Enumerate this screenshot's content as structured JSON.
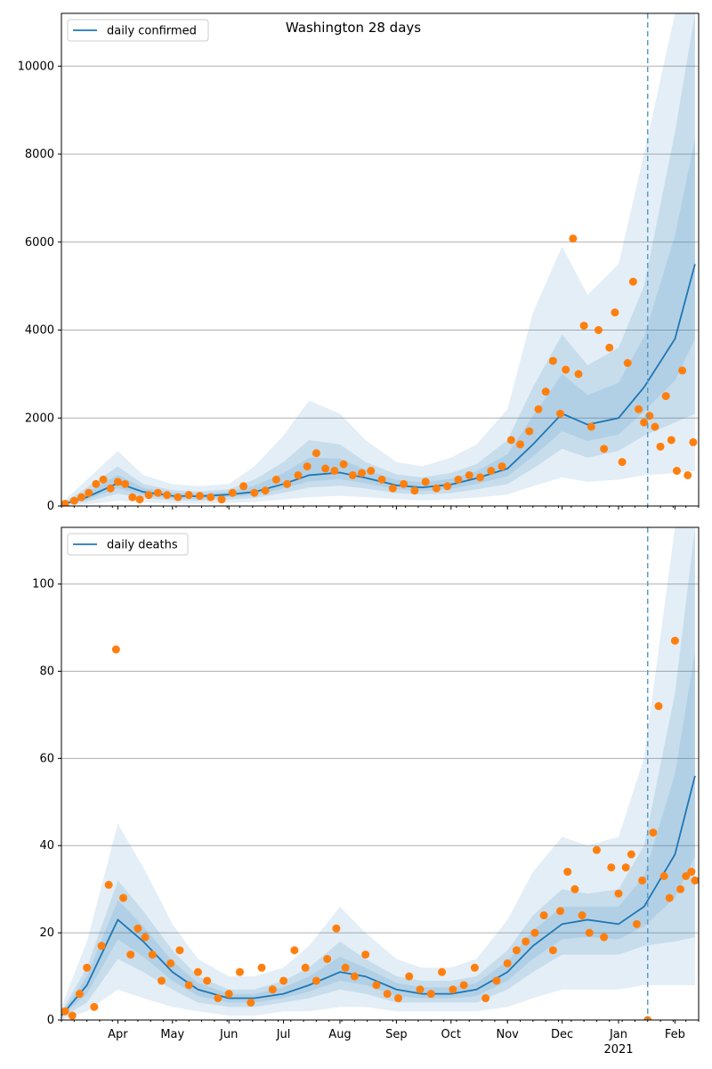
{
  "figure": {
    "title": "Washington 28 days"
  },
  "chart_data": [
    {
      "type": "line",
      "legend": "daily confirmed",
      "legend_position": "top-left",
      "ylim": [
        0,
        11200
      ],
      "yticks": [
        "0",
        "2000",
        "4000",
        "6000",
        "8000",
        "10000"
      ],
      "ytick_values": [
        0,
        2000,
        4000,
        6000,
        8000,
        10000
      ],
      "grid": "horizontal",
      "forecast_start": "2021-01-17",
      "line_color": "#1f77b4",
      "point_color": "#ff7f0e",
      "band_color": "#1f77b4",
      "median_series": {
        "x": [
          "2020-03-01",
          "2020-03-15",
          "2020-04-01",
          "2020-04-15",
          "2020-05-01",
          "2020-05-15",
          "2020-06-01",
          "2020-06-15",
          "2020-07-01",
          "2020-07-15",
          "2020-08-01",
          "2020-08-15",
          "2020-09-01",
          "2020-09-15",
          "2020-10-01",
          "2020-10-15",
          "2020-11-01",
          "2020-11-15",
          "2020-12-01",
          "2020-12-15",
          "2021-01-01",
          "2021-01-15",
          "2021-02-01",
          "2021-02-12"
        ],
        "values": [
          30,
          200,
          520,
          320,
          230,
          220,
          260,
          320,
          500,
          700,
          760,
          640,
          470,
          420,
          490,
          630,
          850,
          1400,
          2100,
          1850,
          2000,
          2700,
          3800,
          5500
        ]
      },
      "band_upper_outer": [
        60,
        600,
        1250,
        700,
        500,
        450,
        500,
        900,
        1600,
        2400,
        2100,
        1500,
        1000,
        900,
        1100,
        1400,
        2200,
        4400,
        5900,
        4800,
        5500,
        8000,
        11200,
        11200
      ],
      "band_upper_mid": [
        45,
        420,
        900,
        500,
        360,
        330,
        380,
        600,
        1000,
        1500,
        1400,
        1000,
        720,
        650,
        750,
        950,
        1500,
        2700,
        3900,
        3200,
        3600,
        5000,
        8500,
        11200
      ],
      "band_lower_mid": [
        15,
        100,
        280,
        180,
        130,
        120,
        150,
        180,
        300,
        420,
        460,
        400,
        290,
        260,
        290,
        380,
        500,
        850,
        1300,
        1100,
        1250,
        1600,
        1900,
        2100
      ],
      "band_lower_outer": [
        5,
        40,
        120,
        80,
        60,
        50,
        70,
        90,
        150,
        200,
        230,
        200,
        150,
        130,
        150,
        190,
        260,
        450,
        650,
        550,
        600,
        700,
        750,
        800
      ],
      "observed": {
        "x": [
          "2020-03-03",
          "2020-03-08",
          "2020-03-12",
          "2020-03-16",
          "2020-03-20",
          "2020-03-24",
          "2020-03-28",
          "2020-04-01",
          "2020-04-05",
          "2020-04-09",
          "2020-04-13",
          "2020-04-18",
          "2020-04-23",
          "2020-04-28",
          "2020-05-04",
          "2020-05-10",
          "2020-05-16",
          "2020-05-22",
          "2020-05-28",
          "2020-06-03",
          "2020-06-09",
          "2020-06-15",
          "2020-06-21",
          "2020-06-27",
          "2020-07-03",
          "2020-07-09",
          "2020-07-14",
          "2020-07-19",
          "2020-07-24",
          "2020-07-29",
          "2020-08-03",
          "2020-08-08",
          "2020-08-13",
          "2020-08-18",
          "2020-08-24",
          "2020-08-30",
          "2020-09-05",
          "2020-09-11",
          "2020-09-17",
          "2020-09-23",
          "2020-09-29",
          "2020-10-05",
          "2020-10-11",
          "2020-10-17",
          "2020-10-23",
          "2020-10-29",
          "2020-11-03",
          "2020-11-08",
          "2020-11-13",
          "2020-11-18",
          "2020-11-22",
          "2020-11-26",
          "2020-11-30",
          "2020-12-03",
          "2020-12-07",
          "2020-12-10",
          "2020-12-13",
          "2020-12-17",
          "2020-12-21",
          "2020-12-24",
          "2020-12-27",
          "2020-12-30",
          "2021-01-03",
          "2021-01-06",
          "2021-01-09",
          "2021-01-12",
          "2021-01-15",
          "2021-01-18",
          "2021-01-21",
          "2021-01-24",
          "2021-01-27",
          "2021-01-30",
          "2021-02-02",
          "2021-02-05",
          "2021-02-08",
          "2021-02-11"
        ],
        "values": [
          50,
          120,
          200,
          300,
          500,
          600,
          400,
          550,
          500,
          200,
          150,
          250,
          300,
          250,
          200,
          250,
          230,
          200,
          150,
          300,
          450,
          300,
          350,
          600,
          500,
          700,
          900,
          1200,
          850,
          800,
          950,
          700,
          750,
          800,
          600,
          400,
          500,
          350,
          550,
          400,
          450,
          600,
          700,
          650,
          800,
          900,
          1500,
          1400,
          1700,
          2200,
          2600,
          3300,
          2100,
          3100,
          6080,
          3000,
          4100,
          1800,
          4000,
          1300,
          3600,
          4400,
          1000,
          3250,
          5100,
          2200,
          1900,
          2050,
          1800,
          1350,
          2500,
          1500,
          800,
          3080,
          700,
          1450
        ]
      }
    },
    {
      "type": "line",
      "legend": "daily deaths",
      "legend_position": "top-left",
      "ylim": [
        0,
        113
      ],
      "yticks": [
        "0",
        "20",
        "40",
        "60",
        "80",
        "100"
      ],
      "ytick_values": [
        0,
        20,
        40,
        60,
        80,
        100
      ],
      "grid": "horizontal",
      "forecast_start": "2021-01-17",
      "line_color": "#1f77b4",
      "point_color": "#ff7f0e",
      "band_color": "#1f77b4",
      "xticks": [
        "Apr",
        "May",
        "Jun",
        "Jul",
        "Aug",
        "Sep",
        "Oct",
        "Nov",
        "Dec",
        "Jan",
        "Feb"
      ],
      "xtick_dates": [
        "2020-04-01",
        "2020-05-01",
        "2020-06-01",
        "2020-07-01",
        "2020-08-01",
        "2020-09-01",
        "2020-10-01",
        "2020-11-01",
        "2020-12-01",
        "2021-01-01",
        "2021-02-01"
      ],
      "xtick_year": "2021",
      "xlim": [
        "2020-03-01",
        "2021-02-14"
      ],
      "median_series": {
        "x": [
          "2020-03-01",
          "2020-03-15",
          "2020-04-01",
          "2020-04-15",
          "2020-05-01",
          "2020-05-15",
          "2020-06-01",
          "2020-06-15",
          "2020-07-01",
          "2020-07-15",
          "2020-08-01",
          "2020-08-15",
          "2020-09-01",
          "2020-09-15",
          "2020-10-01",
          "2020-10-15",
          "2020-11-01",
          "2020-11-15",
          "2020-12-01",
          "2020-12-15",
          "2021-01-01",
          "2021-01-15",
          "2021-02-01",
          "2021-02-12"
        ],
        "values": [
          1,
          8,
          23,
          18,
          11,
          7,
          5,
          5,
          6,
          8,
          11,
          10,
          7,
          6,
          6,
          7,
          11,
          17,
          22,
          23,
          22,
          26,
          38,
          56
        ]
      },
      "band_upper_outer": [
        3,
        18,
        45,
        35,
        22,
        14,
        10,
        10,
        12,
        17,
        26,
        20,
        14,
        12,
        12,
        14,
        23,
        34,
        42,
        40,
        42,
        60,
        113,
        113
      ],
      "band_upper_mid": [
        2,
        12,
        32,
        25,
        16,
        10,
        7,
        7,
        9,
        12,
        18,
        14,
        10,
        9,
        9,
        10,
        16,
        24,
        30,
        29,
        30,
        40,
        75,
        113
      ],
      "band_lower_mid": [
        0.5,
        4,
        14,
        11,
        7,
        4,
        3,
        3,
        4,
        5,
        7,
        6,
        4,
        4,
        4,
        4,
        7,
        11,
        15,
        15,
        15,
        17,
        18,
        19
      ],
      "band_lower_outer": [
        0,
        2,
        7,
        5,
        3,
        2,
        1,
        1,
        2,
        2,
        3,
        3,
        2,
        2,
        2,
        2,
        3,
        5,
        7,
        7,
        7,
        8,
        8,
        8
      ],
      "observed": {
        "x": [
          "2020-03-03",
          "2020-03-07",
          "2020-03-11",
          "2020-03-15",
          "2020-03-19",
          "2020-03-23",
          "2020-03-27",
          "2020-03-31",
          "2020-04-04",
          "2020-04-08",
          "2020-04-12",
          "2020-04-16",
          "2020-04-20",
          "2020-04-25",
          "2020-04-30",
          "2020-05-05",
          "2020-05-10",
          "2020-05-15",
          "2020-05-20",
          "2020-05-26",
          "2020-06-01",
          "2020-06-07",
          "2020-06-13",
          "2020-06-19",
          "2020-06-25",
          "2020-07-01",
          "2020-07-07",
          "2020-07-13",
          "2020-07-19",
          "2020-07-25",
          "2020-07-30",
          "2020-08-04",
          "2020-08-09",
          "2020-08-15",
          "2020-08-21",
          "2020-08-27",
          "2020-09-02",
          "2020-09-08",
          "2020-09-14",
          "2020-09-20",
          "2020-09-26",
          "2020-10-02",
          "2020-10-08",
          "2020-10-14",
          "2020-10-20",
          "2020-10-26",
          "2020-11-01",
          "2020-11-06",
          "2020-11-11",
          "2020-11-16",
          "2020-11-21",
          "2020-11-26",
          "2020-11-30",
          "2020-12-04",
          "2020-12-08",
          "2020-12-12",
          "2020-12-16",
          "2020-12-20",
          "2020-12-24",
          "2020-12-28",
          "2021-01-01",
          "2021-01-05",
          "2021-01-08",
          "2021-01-11",
          "2021-01-14",
          "2021-01-17",
          "2021-01-20",
          "2021-01-23",
          "2021-01-26",
          "2021-01-29",
          "2021-02-01",
          "2021-02-04",
          "2021-02-07",
          "2021-02-10",
          "2021-02-12"
        ],
        "values": [
          2,
          1,
          6,
          12,
          3,
          17,
          31,
          85,
          28,
          15,
          21,
          19,
          15,
          9,
          13,
          16,
          8,
          11,
          9,
          5,
          6,
          11,
          4,
          12,
          7,
          9,
          16,
          12,
          9,
          14,
          21,
          12,
          10,
          15,
          8,
          6,
          5,
          10,
          7,
          6,
          11,
          7,
          8,
          12,
          5,
          9,
          13,
          16,
          18,
          20,
          24,
          16,
          25,
          34,
          30,
          24,
          20,
          39,
          19,
          35,
          29,
          35,
          38,
          22,
          32,
          0,
          43,
          72,
          33,
          28,
          87,
          30,
          33,
          34,
          32
        ]
      }
    }
  ]
}
